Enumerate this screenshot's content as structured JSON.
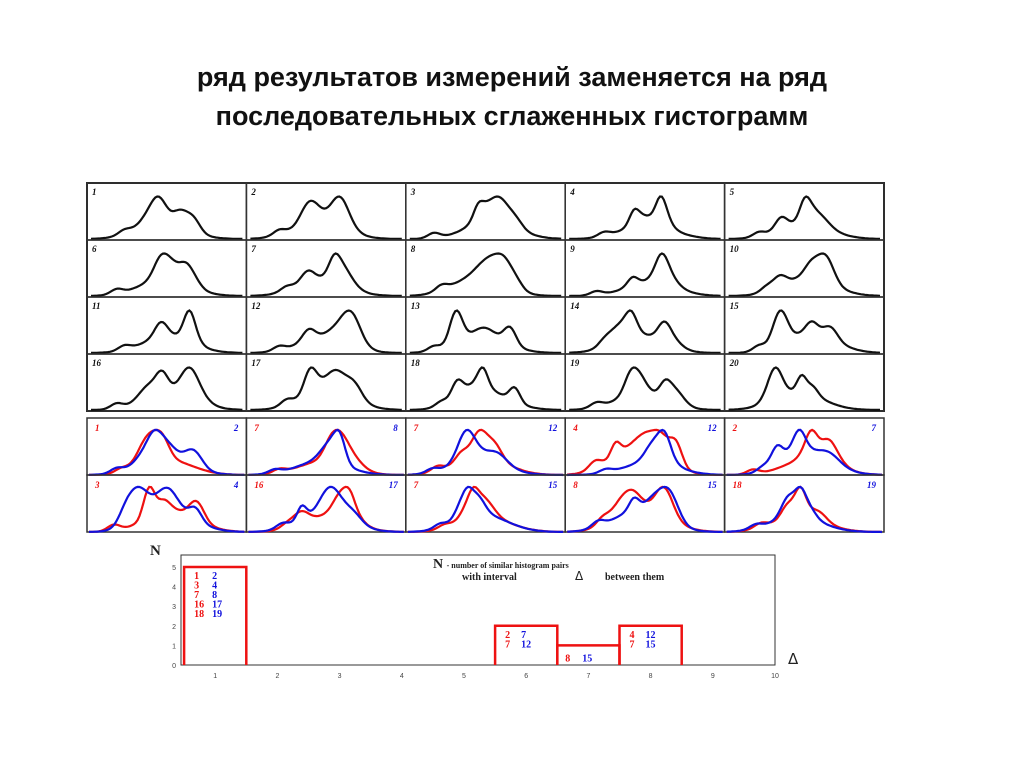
{
  "title": {
    "line1": "ряд результатов измерений заменяется на ряд",
    "line2": "последовательных сглаженных гистограмм"
  },
  "histogram_grid": {
    "labels": [
      "1",
      "2",
      "3",
      "4",
      "5",
      "6",
      "7",
      "8",
      "9",
      "10",
      "11",
      "12",
      "13",
      "14",
      "15",
      "16",
      "17",
      "18",
      "19",
      "20"
    ],
    "line_color": "#111111"
  },
  "pair_grid": {
    "red_color": "#ee1111",
    "blue_color": "#1111dd",
    "pairs": [
      {
        "red": "1",
        "blue": "2"
      },
      {
        "red": "7",
        "blue": "8"
      },
      {
        "red": "7",
        "blue": "12"
      },
      {
        "red": "4",
        "blue": "12"
      },
      {
        "red": "2",
        "blue": "7"
      },
      {
        "red": "3",
        "blue": "4"
      },
      {
        "red": "16",
        "blue": "17"
      },
      {
        "red": "7",
        "blue": "15"
      },
      {
        "red": "8",
        "blue": "15"
      },
      {
        "red": "18",
        "blue": "19"
      }
    ]
  },
  "chart_data": {
    "type": "bar",
    "ylabel": "N",
    "xlabel": "Δ",
    "legend": {
      "symbol": "N",
      "line1": "- number of similar histogram pairs",
      "line2_a": "with interval",
      "line2_symbol": "Δ",
      "line2_b": "between them"
    },
    "x_ticks": [
      "1",
      "2",
      "3",
      "4",
      "5",
      "6",
      "7",
      "8",
      "9",
      "10"
    ],
    "y_ticks": [
      "0",
      "1",
      "2",
      "3",
      "4",
      "5"
    ],
    "xlim": [
      0.5,
      10
    ],
    "ylim": [
      0,
      5.5
    ],
    "bar_color": "#ee1111",
    "bars": [
      {
        "x": 1,
        "value": 5,
        "pairs": [
          [
            "1",
            "2"
          ],
          [
            "3",
            "4"
          ],
          [
            "7",
            "8"
          ],
          [
            "16",
            "17"
          ],
          [
            "18",
            "19"
          ]
        ]
      },
      {
        "x": 6,
        "value": 2,
        "pairs": [
          [
            "2",
            "7"
          ],
          [
            "7",
            "12"
          ]
        ]
      },
      {
        "x": 7,
        "value": 1,
        "pairs": [
          [
            "8",
            "15"
          ]
        ]
      },
      {
        "x": 8,
        "value": 2,
        "pairs": [
          [
            "4",
            "12"
          ],
          [
            "7",
            "15"
          ]
        ]
      }
    ]
  }
}
